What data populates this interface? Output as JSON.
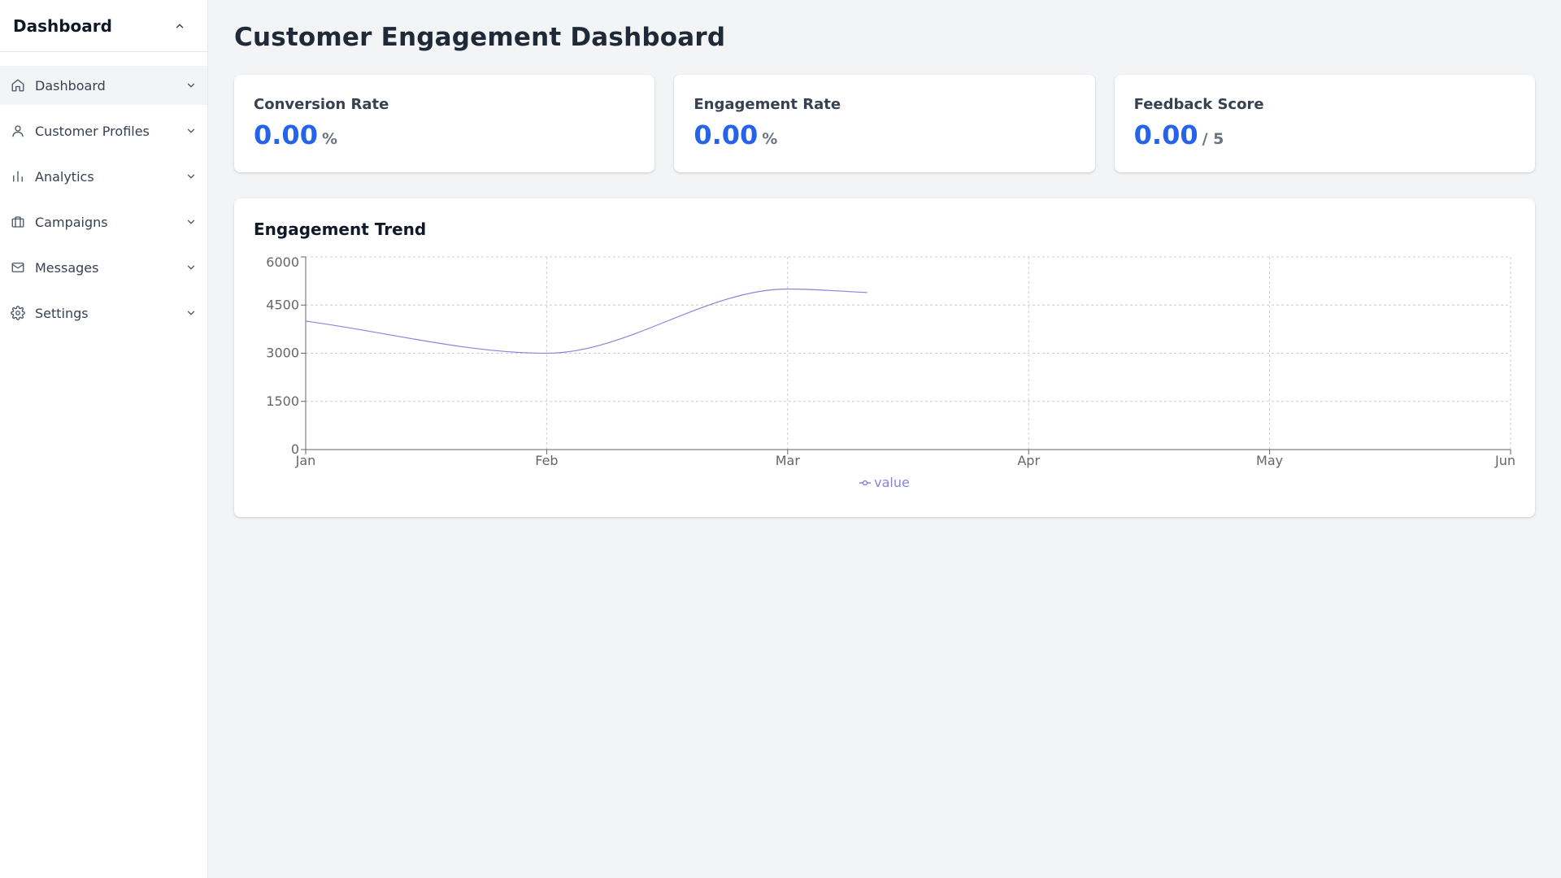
{
  "sidebar": {
    "title": "Dashboard",
    "items": [
      {
        "label": "Dashboard",
        "icon": "home-icon",
        "active": true
      },
      {
        "label": "Customer Profiles",
        "icon": "user-icon",
        "active": false
      },
      {
        "label": "Analytics",
        "icon": "bar-chart-icon",
        "active": false
      },
      {
        "label": "Campaigns",
        "icon": "briefcase-icon",
        "active": false
      },
      {
        "label": "Messages",
        "icon": "mail-icon",
        "active": false
      },
      {
        "label": "Settings",
        "icon": "gear-icon",
        "active": false
      }
    ]
  },
  "main": {
    "title": "Customer Engagement Dashboard",
    "cards": [
      {
        "label": "Conversion Rate",
        "value": "0.00",
        "unit": "%"
      },
      {
        "label": "Engagement Rate",
        "value": "0.00",
        "unit": "%"
      },
      {
        "label": "Feedback Score",
        "value": "0.00",
        "unit": "/ 5"
      }
    ],
    "chart_title": "Engagement Trend"
  },
  "colors": {
    "accent": "#2563eb",
    "line": "#8884d8",
    "grid": "#cccccc"
  },
  "chart_data": {
    "type": "line",
    "title": "Engagement Trend",
    "categories": [
      "Jan",
      "Feb",
      "Mar",
      "Apr",
      "May",
      "Jun"
    ],
    "series": [
      {
        "name": "value",
        "x": [
          0,
          1,
          2,
          2.33
        ],
        "values": [
          4000,
          3000,
          5000,
          4890
        ]
      }
    ],
    "yticks": [
      0,
      1500,
      3000,
      4500,
      6000
    ],
    "ylim": [
      0,
      6000
    ],
    "grid": true,
    "legend": "bottom-center"
  }
}
